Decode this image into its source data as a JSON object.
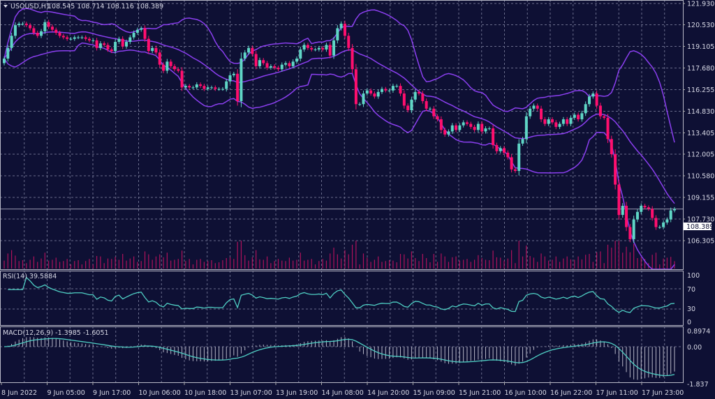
{
  "header": {
    "symbol": "USOUSD,H1",
    "ohlc": "108.545 108.714 108.116 108.389"
  },
  "rsi_panel": {
    "label": "RSI(14) 39.5884",
    "ticks": [
      "100",
      "70",
      "30",
      "0"
    ]
  },
  "macd_panel": {
    "label": "MACD(12,26,9) -1.3985 -1.6051",
    "ticks": [
      "0.8974",
      "0.00",
      "-1.837"
    ]
  },
  "colors": {
    "background": "#0e1034",
    "bull": "#5fd6c6",
    "bear": "#ff0f6e",
    "bands": "#8b3ff0",
    "grid": "#6a6d8c",
    "indicator": "#4fcfc4"
  },
  "chart_data": {
    "type": "candlestick",
    "symbol": "USOUSD",
    "timeframe": "H1",
    "last_price": "108.389",
    "y_ticks": [
      "121.930",
      "120.530",
      "119.105",
      "117.680",
      "116.255",
      "114.830",
      "113.405",
      "112.005",
      "110.580",
      "109.155",
      "107.730",
      "106.305"
    ],
    "ylim": [
      106.305,
      121.93
    ],
    "x_tick_labels": [
      "8 Jun 2022",
      "9 Jun 05:00",
      "9 Jun 17:00",
      "10 Jun 06:00",
      "10 Jun 18:00",
      "13 Jun 07:00",
      "13 Jun 19:00",
      "14 Jun 08:00",
      "14 Jun 20:00",
      "15 Jun 09:00",
      "15 Jun 21:00",
      "16 Jun 10:00",
      "16 Jun 22:00",
      "17 Jun 11:00",
      "17 Jun 23:00"
    ],
    "grid": true,
    "indicators": [
      "Bollinger Bands",
      "Volume",
      "RSI(14)",
      "MACD(12,26,9)"
    ],
    "close": [
      118.3,
      119.0,
      119.8,
      120.5,
      120.6,
      120.6,
      120.5,
      120.3,
      120.0,
      119.8,
      120.1,
      120.7,
      120.4,
      120.2,
      120.0,
      119.8,
      119.7,
      119.6,
      119.6,
      119.7,
      119.7,
      119.7,
      119.6,
      119.5,
      119.5,
      119.0,
      119.3,
      119.2,
      118.9,
      118.8,
      119.4,
      119.6,
      119.1,
      119.4,
      119.7,
      120.0,
      120.2,
      120.3,
      119.6,
      118.8,
      119.0,
      118.7,
      117.9,
      117.5,
      118.1,
      117.8,
      117.6,
      117.5,
      116.4,
      116.5,
      116.4,
      116.4,
      116.6,
      116.5,
      116.3,
      116.4,
      116.4,
      116.3,
      116.3,
      116.3,
      116.8,
      117.2,
      117.3,
      115.5,
      118.3,
      118.7,
      119.0,
      118.6,
      117.8,
      118.2,
      118.0,
      117.7,
      117.8,
      117.7,
      117.6,
      117.9,
      118.0,
      117.8,
      118.1,
      118.3,
      118.9,
      119.2,
      119.0,
      118.9,
      118.9,
      119.0,
      118.9,
      119.2,
      118.5,
      119.5,
      120.3,
      120.6,
      119.8,
      119.0,
      117.6,
      115.3,
      115.3,
      116.0,
      116.2,
      116.0,
      115.8,
      116.1,
      116.3,
      116.2,
      116.2,
      116.5,
      116.5,
      116.0,
      115.2,
      114.9,
      115.6,
      116.1,
      116.0,
      115.5,
      115.0,
      115.0,
      114.5,
      114.3,
      113.6,
      113.3,
      113.5,
      113.9,
      113.6,
      113.9,
      114.1,
      114.0,
      113.8,
      113.6,
      114.0,
      113.5,
      113.7,
      113.7,
      112.6,
      112.2,
      112.4,
      112.1,
      111.8,
      111.0,
      110.9,
      112.7,
      113.0,
      114.5,
      115.0,
      115.2,
      115.0,
      114.3,
      114.0,
      114.3,
      114.1,
      113.8,
      114.0,
      114.3,
      114.0,
      114.4,
      114.6,
      114.3,
      114.7,
      115.3,
      115.8,
      116.0,
      115.2,
      114.5,
      114.4,
      113.0,
      112.0,
      110.0,
      108.0,
      108.6,
      107.2,
      106.4,
      107.7,
      108.2,
      108.6,
      108.5,
      108.4,
      107.8,
      107.2,
      107.2,
      107.5,
      107.7,
      108.3,
      108.389
    ]
  }
}
